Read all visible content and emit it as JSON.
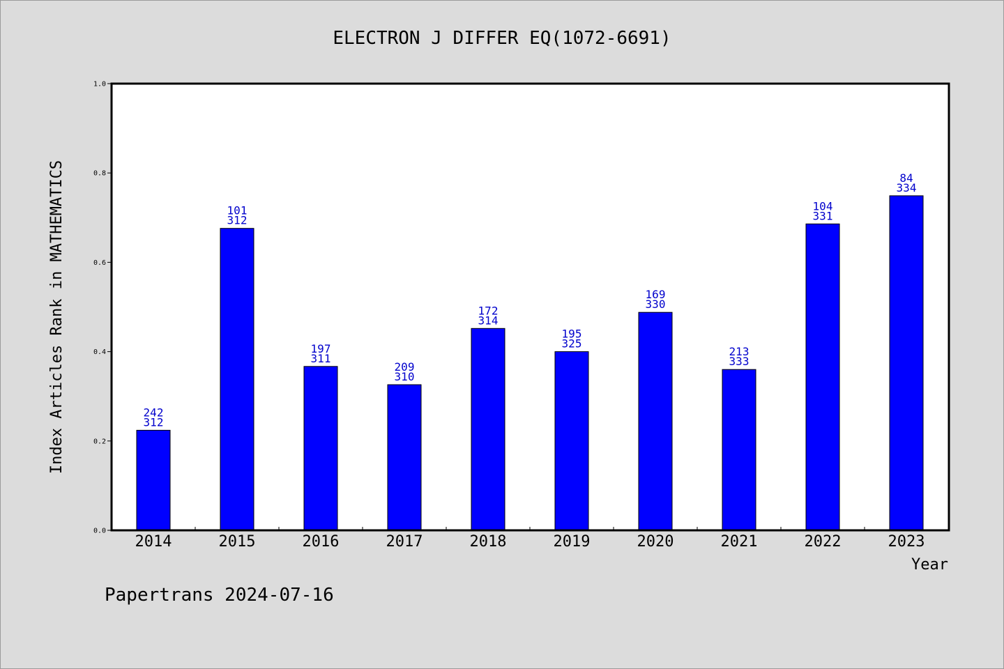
{
  "chart_data": {
    "type": "bar",
    "title": "ELECTRON J DIFFER EQ(1072-6691)",
    "xlabel": "Year",
    "ylabel": "Index Articles Rank in MATHEMATICS",
    "ylim": [
      0.0,
      1.0
    ],
    "yticks": [
      "0.0",
      "0.2",
      "0.4",
      "0.6",
      "0.8",
      "1.0"
    ],
    "grid": false,
    "bar_color": "#0000ff",
    "label_color": "#0000cc",
    "categories": [
      "2014",
      "2015",
      "2016",
      "2017",
      "2018",
      "2019",
      "2020",
      "2021",
      "2022",
      "2023"
    ],
    "values": [
      0.224,
      0.676,
      0.367,
      0.326,
      0.452,
      0.4,
      0.488,
      0.36,
      0.686,
      0.749
    ],
    "rank": [
      "242",
      "101",
      "197",
      "209",
      "172",
      "195",
      "169",
      "213",
      "104",
      "84"
    ],
    "total": [
      "312",
      "312",
      "311",
      "310",
      "314",
      "325",
      "330",
      "333",
      "331",
      "334"
    ]
  },
  "footer": "Papertrans 2024-07-16"
}
